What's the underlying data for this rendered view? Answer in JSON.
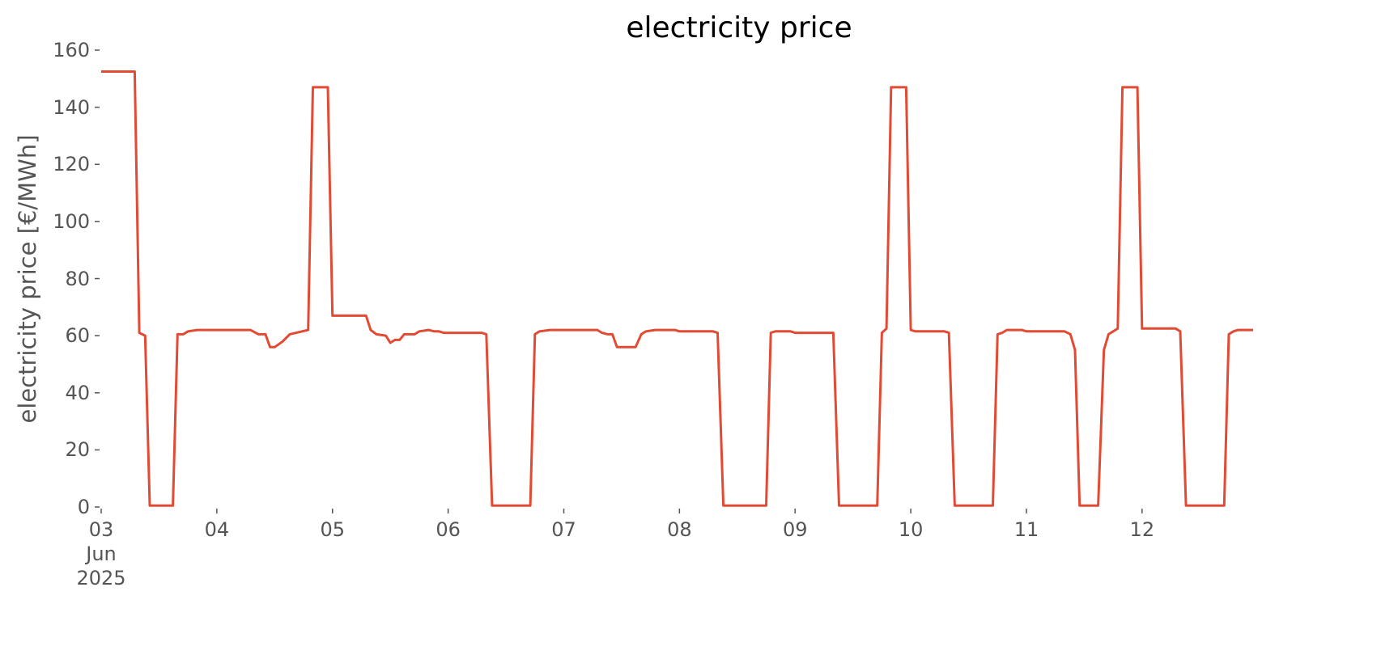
{
  "chart_data": {
    "type": "line",
    "title": "electricity price",
    "y_label": "electricity price [€/MWh]",
    "color": "#e24a33",
    "grid": false,
    "xlim": [
      3,
      12.96
    ],
    "xticks": [
      {
        "value": 3,
        "label": "03\nJun\n2025"
      },
      {
        "value": 4,
        "label": "04"
      },
      {
        "value": 5,
        "label": "05"
      },
      {
        "value": 6,
        "label": "06"
      },
      {
        "value": 7,
        "label": "07"
      },
      {
        "value": 8,
        "label": "08"
      },
      {
        "value": 9,
        "label": "09"
      },
      {
        "value": 10,
        "label": "10"
      },
      {
        "value": 11,
        "label": "11"
      },
      {
        "value": 12,
        "label": "12"
      }
    ],
    "ylim": [
      0,
      160
    ],
    "yticks": [
      0,
      20,
      40,
      60,
      80,
      100,
      120,
      140,
      160
    ],
    "x": [
      3.0,
      3.29,
      3.33,
      3.38,
      3.42,
      3.62,
      3.66,
      3.71,
      3.75,
      3.83,
      4.29,
      4.36,
      4.42,
      4.46,
      4.5,
      4.57,
      4.63,
      4.79,
      4.83,
      4.96,
      5.0,
      5.29,
      5.33,
      5.38,
      5.46,
      5.5,
      5.54,
      5.58,
      5.62,
      5.71,
      5.75,
      5.83,
      5.88,
      5.92,
      5.96,
      6.29,
      6.33,
      6.38,
      6.71,
      6.75,
      6.79,
      6.88,
      7.29,
      7.33,
      7.38,
      7.42,
      7.46,
      7.62,
      7.67,
      7.71,
      7.79,
      7.96,
      8.0,
      8.29,
      8.33,
      8.38,
      8.75,
      8.79,
      8.83,
      8.96,
      9.0,
      9.33,
      9.38,
      9.71,
      9.75,
      9.79,
      9.83,
      9.96,
      10.0,
      10.04,
      10.29,
      10.33,
      10.38,
      10.71,
      10.75,
      10.79,
      10.83,
      10.96,
      11.0,
      11.33,
      11.38,
      11.42,
      11.46,
      11.62,
      11.67,
      11.71,
      11.79,
      11.83,
      11.96,
      12.0,
      12.29,
      12.33,
      12.38,
      12.71,
      12.75,
      12.79,
      12.83,
      12.96
    ],
    "values": [
      152.5,
      152.5,
      61,
      60,
      0.5,
      0.5,
      60.5,
      60.5,
      61.5,
      62,
      62,
      60.5,
      60.5,
      56,
      56,
      58,
      60.5,
      62,
      147,
      147,
      67,
      67,
      62,
      60.5,
      60,
      57.5,
      58.5,
      58.5,
      60.5,
      60.5,
      61.5,
      62,
      61.5,
      61.5,
      61,
      61,
      60.5,
      0.5,
      0.5,
      60.5,
      61.5,
      62,
      62,
      61,
      60.5,
      60.5,
      56,
      56,
      60.5,
      61.5,
      62,
      62,
      61.5,
      61.5,
      61,
      0.5,
      0.5,
      61,
      61.5,
      61.5,
      61,
      61,
      0.5,
      0.5,
      61,
      62.5,
      147,
      147,
      62,
      61.5,
      61.5,
      61,
      0.5,
      0.5,
      60.5,
      61,
      62,
      62,
      61.5,
      61.5,
      60.5,
      55,
      0.5,
      0.5,
      55,
      60.5,
      62.5,
      147,
      147,
      62.5,
      62.5,
      61.5,
      0.5,
      0.5,
      60.5,
      61.5,
      62,
      62
    ]
  }
}
